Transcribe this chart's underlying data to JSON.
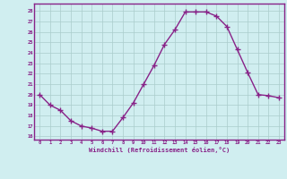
{
  "x": [
    0,
    1,
    2,
    3,
    4,
    5,
    6,
    7,
    8,
    9,
    10,
    11,
    12,
    13,
    14,
    15,
    16,
    17,
    18,
    19,
    20,
    21,
    22,
    23
  ],
  "y": [
    20,
    19,
    18.5,
    17.5,
    17,
    16.8,
    16.5,
    16.5,
    17.8,
    19.2,
    21.0,
    22.8,
    24.8,
    26.2,
    27.9,
    27.9,
    27.9,
    27.5,
    26.5,
    24.3,
    22.1,
    20.0,
    19.9,
    19.7
  ],
  "line_color": "#882288",
  "marker_color": "#882288",
  "bg_color": "#d0eef0",
  "grid_color": "#aacccc",
  "xlabel": "Windchill (Refroidissement éolien,°C)",
  "xlabel_color": "#882288",
  "ylabel_ticks": [
    16,
    17,
    18,
    19,
    20,
    21,
    22,
    23,
    24,
    25,
    26,
    27,
    28
  ],
  "xlim": [
    -0.5,
    23.5
  ],
  "ylim": [
    15.7,
    28.7
  ],
  "xticks": [
    0,
    1,
    2,
    3,
    4,
    5,
    6,
    7,
    8,
    9,
    10,
    11,
    12,
    13,
    14,
    15,
    16,
    17,
    18,
    19,
    20,
    21,
    22,
    23
  ],
  "figsize": [
    3.2,
    2.0
  ],
  "dpi": 100
}
